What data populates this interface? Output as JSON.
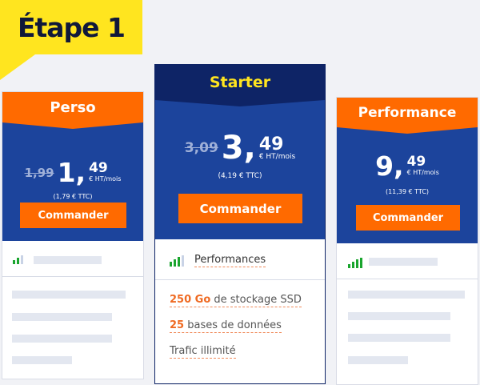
{
  "step_label": "Étape 1",
  "colors": {
    "orange": "#ff6a00",
    "blue": "#1c449c",
    "navy": "#0e2466",
    "yellow": "#ffe51f",
    "starter_title": "#ffe51f",
    "signal": "#1aa52e"
  },
  "plans": [
    {
      "name": "Perso",
      "old_price": "1,99",
      "price_int": "1,",
      "price_cents": "49",
      "unit": "€ HT/mois",
      "ttc": "(1,79 € TTC)",
      "button": "Commander",
      "signal_level": 2
    },
    {
      "name": "Starter",
      "old_price": "3,09",
      "price_int": "3,",
      "price_cents": "49",
      "unit": "€ HT/mois",
      "ttc": "(4,19 € TTC)",
      "button": "Commander",
      "signal_level": 3,
      "section_title": "Performances",
      "features": [
        {
          "highlight": "250 Go",
          "text": " de stockage SSD"
        },
        {
          "highlight": "25",
          "text": " bases de données"
        },
        {
          "highlight": "",
          "text": "Trafic illimité"
        }
      ]
    },
    {
      "name": "Performance",
      "price_int": "9,",
      "price_cents": "49",
      "unit": "€ HT/mois",
      "ttc": "(11,39 € TTC)",
      "button": "Commander",
      "signal_level": 4
    }
  ]
}
